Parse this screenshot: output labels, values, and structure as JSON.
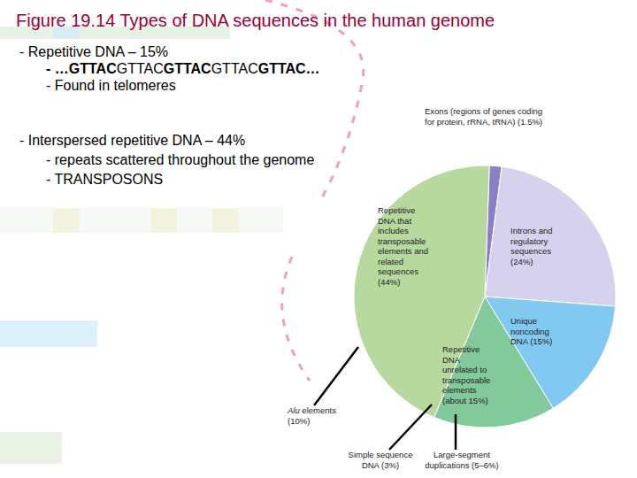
{
  "bullets": [
    {
      "text": "- Repetitive DNA – 15%",
      "items": [
        "- …GTTACGTTACGTTACGTTACGTTAC…",
        "- Found in telomeres"
      ]
    },
    {
      "text": "- Interspersed repetitive DNA – 44%",
      "items": [
        "- repeats scattered throughout the genome",
        "- TRANSPOSONS"
      ]
    }
  ],
  "chart_data": {
    "type": "pie",
    "title": "Figure 19.14 Types of DNA sequences in the human genome",
    "categories": [
      "Exons (regions of genes coding for protein, rRNA, tRNA) (1.5%)",
      "Introns and regulatory sequences (24%)",
      "Unique noncoding DNA (15%)",
      "Repetitive DNA unrelated to transposable elements (about 15%)",
      "Repetitive DNA that includes transposable elements and related sequences (44%)"
    ],
    "values": [
      1.5,
      24,
      15,
      15,
      44
    ],
    "colors": [
      "#8b80c8",
      "#d6d2ee",
      "#82c9f2",
      "#82c99c",
      "#b7d99e"
    ],
    "annotations": [
      "Alu elements (10%)",
      "Simple sequence DNA (3%)",
      "Large-segment duplications (5–6%)"
    ]
  }
}
